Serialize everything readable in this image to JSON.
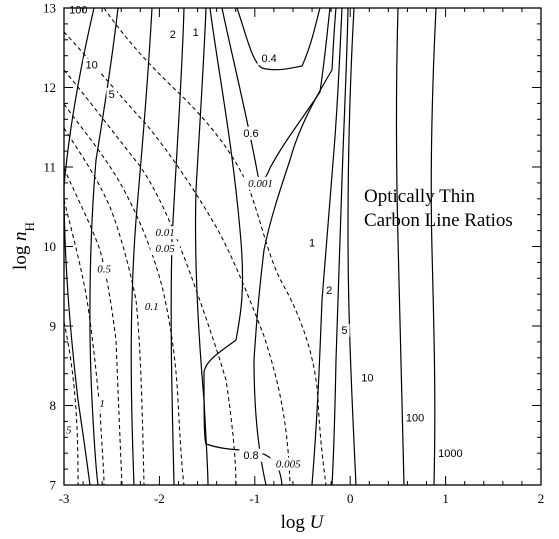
{
  "chart_data": {
    "type": "contour",
    "xlabel": "log U",
    "ylabel": "log nH",
    "xlim": [
      -3,
      2
    ],
    "ylim": [
      7,
      13
    ],
    "xticks": [
      "-3",
      "-2",
      "-1",
      "0",
      "1",
      "2"
    ],
    "yticks": [
      "7",
      "8",
      "9",
      "10",
      "11",
      "12",
      "13"
    ],
    "annotation": [
      "Optically Thin",
      "Carbon Line Ratios"
    ],
    "series": [
      {
        "style": "solid",
        "levels": [
          {
            "label": "0.4",
            "at": [
              -0.85,
              12.32
            ]
          },
          {
            "label": "0.6",
            "at": [
              -1.04,
              11.38
            ]
          },
          {
            "label": "0.8",
            "at": [
              -1.04,
              7.33
            ]
          },
          {
            "label": "1",
            "at": [
              -0.4,
              10.0
            ]
          },
          {
            "label": "2",
            "at": [
              -0.22,
              9.4
            ]
          },
          {
            "label": "5",
            "at": [
              -0.06,
              8.9
            ]
          },
          {
            "label": "10",
            "at": [
              0.18,
              8.3
            ]
          },
          {
            "label": "100",
            "at": [
              0.68,
              7.8
            ]
          },
          {
            "label": "1000",
            "at": [
              1.05,
              7.35
            ]
          },
          {
            "label": "1",
            "at": [
              -1.62,
              12.65
            ]
          },
          {
            "label": "2",
            "at": [
              -1.86,
              12.62
            ]
          },
          {
            "label": "5",
            "at": [
              -2.5,
              11.87
            ]
          },
          {
            "label": "10",
            "at": [
              -2.71,
              12.24
            ]
          },
          {
            "label": "100",
            "at": [
              -2.85,
              12.93
            ]
          }
        ]
      },
      {
        "style": "dashed",
        "levels": [
          {
            "label": "0.001",
            "at": [
              -0.94,
              10.75
            ]
          },
          {
            "label": "0.01",
            "at": [
              -1.94,
              10.13
            ]
          },
          {
            "label": "0.05",
            "at": [
              -1.94,
              9.93
            ]
          },
          {
            "label": "0.5",
            "at": [
              -2.58,
              9.67
            ]
          },
          {
            "label": "0.1",
            "at": [
              -2.08,
              9.2
            ]
          },
          {
            "label": "1",
            "at": [
              -2.6,
              7.98
            ]
          },
          {
            "label": "5",
            "at": [
              -2.95,
              7.65
            ]
          },
          {
            "label": "0.005",
            "at": [
              -0.65,
              7.22
            ]
          }
        ]
      }
    ]
  }
}
